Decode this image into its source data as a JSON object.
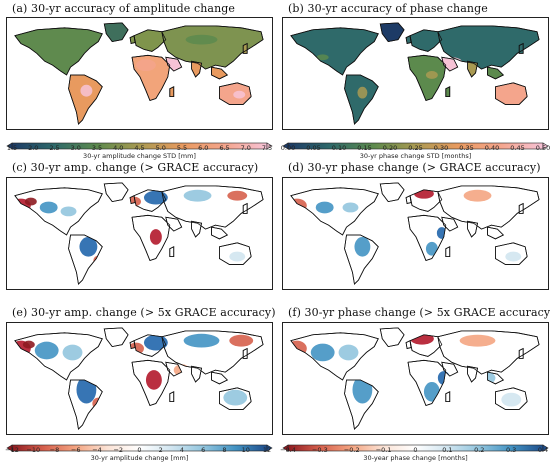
{
  "panels": [
    {
      "title": "(a)   30-yr accuracy of amplitude change",
      "map": "accuracy-amplitude",
      "colorbar": {
        "label": "30-yr amplitude change STD [mm]",
        "ticks": [
          "1.5",
          "2.0",
          "2.5",
          "3.0",
          "3.5",
          "4.0",
          "4.5",
          "5.0",
          "5.5",
          "6.0",
          "6.5",
          "7.0",
          "7.5"
        ],
        "colors": [
          "#1d3b66",
          "#2f6a6a",
          "#5c8a4d",
          "#a99a52",
          "#e89a5f",
          "#f4a58c",
          "#f7c3d6"
        ]
      }
    },
    {
      "title": "(b)   30-yr accuracy of phase change",
      "map": "accuracy-phase",
      "colorbar": {
        "label": "30-yr phase change STD [months]",
        "ticks": [
          "0.00",
          "0.05",
          "0.10",
          "0.15",
          "0.20",
          "0.25",
          "0.30",
          "0.35",
          "0.40",
          "0.45",
          "0.50"
        ],
        "colors": [
          "#1d3b66",
          "#2f6a6a",
          "#5c8a4d",
          "#a99a52",
          "#e89a5f",
          "#f4a58c",
          "#f7c3d6"
        ]
      }
    },
    {
      "title": "(c)   30-yr amp. change (> GRACE accuracy)",
      "map": "change-amp-1x"
    },
    {
      "title": "(d)   30-yr phase change (> GRACE accuracy)",
      "map": "change-phase-1x"
    },
    {
      "title": "(e)   30-yr amp. change (> 5x GRACE accuracy)",
      "map": "change-amp-5x",
      "colorbar": {
        "label": "30-yr amplitude change [mm]",
        "ticks": [
          "−12",
          "−10",
          "−8",
          "−6",
          "−4",
          "−2",
          "0",
          "2",
          "4",
          "6",
          "8",
          "10",
          "12"
        ],
        "colors": [
          "#8e1b21",
          "#d6604d",
          "#f4a582",
          "#fbe3d6",
          "#ffffff",
          "#d1e5f0",
          "#92c5de",
          "#4393c3",
          "#1f4e8c"
        ]
      }
    },
    {
      "title": "(f)   30-yr phase change (> 5x GRACE accuracy)",
      "map": "change-phase-5x",
      "colorbar": {
        "label": "30-year phase change [months]",
        "ticks": [
          "−0.4",
          "−0.3",
          "−0.2",
          "−0.1",
          "0",
          "0.1",
          "0.2",
          "0.3",
          "0.4"
        ],
        "colors": [
          "#8e1b21",
          "#d6604d",
          "#f4a582",
          "#fbe3d6",
          "#ffffff",
          "#d1e5f0",
          "#92c5de",
          "#4393c3",
          "#1f4e8c"
        ]
      }
    }
  ]
}
